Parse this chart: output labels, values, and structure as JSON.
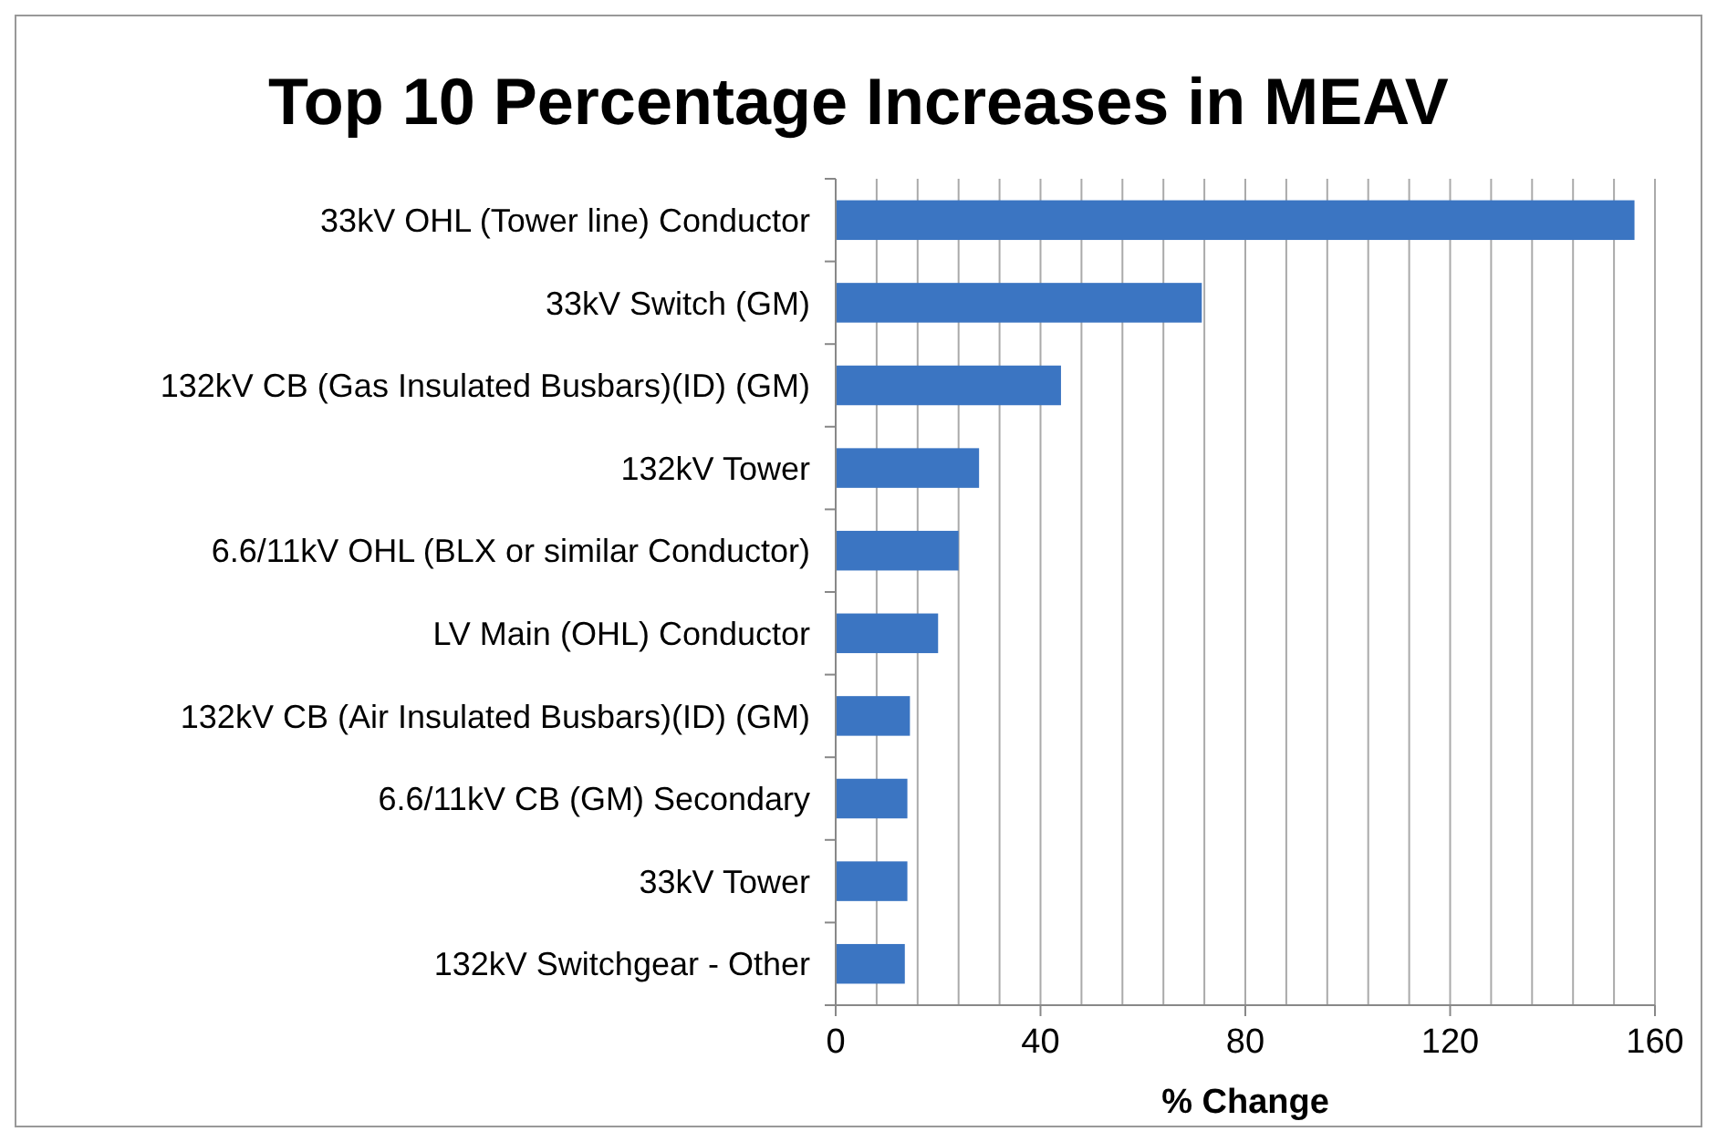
{
  "chart_data": {
    "type": "bar",
    "orientation": "horizontal",
    "title": "Top 10 Percentage Increases in MEAV",
    "xlabel": "% Change",
    "categories": [
      "33kV OHL (Tower line) Conductor",
      "33kV Switch (GM)",
      "132kV CB (Gas Insulated Busbars)(ID) (GM)",
      "132kV Tower",
      "6.6/11kV OHL (BLX or similar Conductor)",
      "LV Main (OHL) Conductor",
      "132kV CB (Air Insulated Busbars)(ID) (GM)",
      "6.6/11kV CB (GM) Secondary",
      "33kV Tower",
      "132kV Switchgear - Other"
    ],
    "values": [
      156,
      71.5,
      44,
      28,
      24,
      20,
      14.5,
      14,
      14,
      13.5
    ],
    "color": "#3b75c2",
    "xlim": [
      0,
      160
    ],
    "xticks": [
      0,
      {
        "value": 8,
        "label": null
      },
      {
        "value": 16,
        "label": null
      },
      {
        "value": 24,
        "label": null
      },
      {
        "value": 32,
        "label": null
      },
      40,
      {
        "value": 48,
        "label": null
      },
      {
        "value": 56,
        "label": null
      },
      {
        "value": 64,
        "label": null
      },
      {
        "value": 72,
        "label": null
      },
      80,
      {
        "value": 88,
        "label": null
      },
      {
        "value": 96,
        "label": null
      },
      {
        "value": 104,
        "label": null
      },
      {
        "value": 112,
        "label": null
      },
      120,
      {
        "value": 128,
        "label": null
      },
      {
        "value": 136,
        "label": null
      },
      {
        "value": 144,
        "label": null
      },
      {
        "value": 152,
        "label": null
      },
      160
    ],
    "grid": "x"
  }
}
